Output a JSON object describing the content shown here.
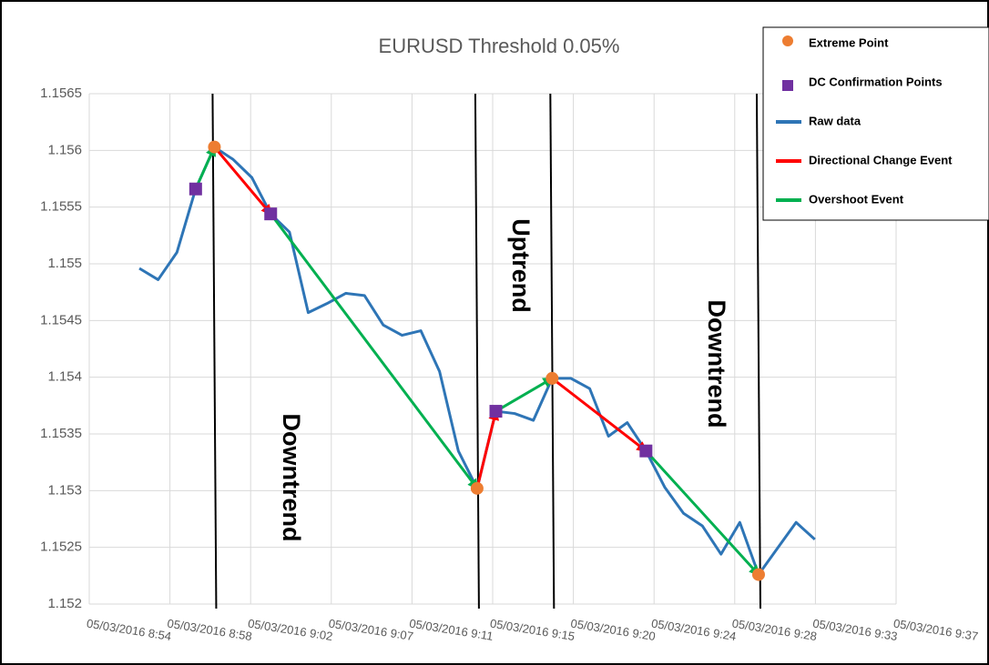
{
  "chart_data": {
    "type": "line",
    "title": "EURUSD Threshold 0.05%",
    "xlim": [
      534.33,
      577.33
    ],
    "xticks": [
      {
        "value": 534.33,
        "label": "05/03/2016 8:54"
      },
      {
        "value": 538.63,
        "label": "05/03/2016 8:58"
      },
      {
        "value": 542.93,
        "label": "05/03/2016 9:02"
      },
      {
        "value": 547.23,
        "label": "05/03/2016 9:07"
      },
      {
        "value": 551.53,
        "label": "05/03/2016 9:11"
      },
      {
        "value": 555.83,
        "label": "05/03/2016 9:15"
      },
      {
        "value": 560.13,
        "label": "05/03/2016 9:20"
      },
      {
        "value": 564.43,
        "label": "05/03/2016 9:24"
      },
      {
        "value": 568.73,
        "label": "05/03/2016 9:28"
      },
      {
        "value": 573.03,
        "label": "05/03/2016 9:33"
      },
      {
        "value": 577.33,
        "label": "05/03/2016 9:37"
      }
    ],
    "ylim": [
      1.152,
      1.1565
    ],
    "yticks": [
      1.152,
      1.1525,
      1.153,
      1.1535,
      1.154,
      1.1545,
      1.155,
      1.1555,
      1.156,
      1.1565
    ],
    "grid": true,
    "legend": "top-right",
    "annotations": [
      "Downtrend",
      "Uptrend",
      "Downtrend"
    ],
    "series": [
      {
        "name": "Extreme Point",
        "color": "#ed7d31",
        "kind": "points",
        "x": [
          541,
          555,
          559,
          570
        ],
        "values": [
          1.15603,
          1.15302,
          1.15399,
          1.15226
        ]
      },
      {
        "name": "DC Confirmation Points",
        "color": "#7030a0",
        "kind": "squares",
        "x": [
          540,
          544,
          556,
          564
        ],
        "values": [
          1.15566,
          1.15544,
          1.1537,
          1.15335
        ]
      },
      {
        "name": "Raw data",
        "color": "#2e75b6",
        "kind": "line",
        "x": [
          537,
          538,
          539,
          540,
          541,
          542,
          543,
          544,
          545,
          546,
          547,
          548,
          549,
          550,
          551,
          552,
          553,
          554,
          555,
          556,
          557,
          558,
          559,
          560,
          561,
          562,
          563,
          564,
          565,
          566,
          567,
          568,
          569,
          570,
          571,
          572,
          573
        ],
        "values": [
          1.15496,
          1.15486,
          1.1551,
          1.15566,
          1.15603,
          1.15592,
          1.15576,
          1.15544,
          1.15528,
          1.15457,
          1.15465,
          1.15474,
          1.15472,
          1.15446,
          1.15437,
          1.15441,
          1.15405,
          1.15335,
          1.15302,
          1.1537,
          1.15368,
          1.15362,
          1.15399,
          1.15399,
          1.1539,
          1.15348,
          1.1536,
          1.15335,
          1.15303,
          1.1528,
          1.15269,
          1.15244,
          1.15272,
          1.15226,
          1.15249,
          1.15272,
          1.15257
        ]
      },
      {
        "name": "Directional Change Event",
        "color": "#ff0000",
        "kind": "arrows",
        "x": [
          541,
          544,
          null,
          555,
          556,
          null,
          559,
          564
        ],
        "values": [
          1.15603,
          1.15544,
          null,
          1.15302,
          1.1537,
          null,
          1.15399,
          1.15335
        ]
      },
      {
        "name": "Overshoot Event",
        "color": "#00b050",
        "kind": "arrows",
        "x": [
          540,
          541,
          null,
          544,
          555,
          null,
          556,
          559,
          null,
          564,
          570
        ],
        "values": [
          1.15566,
          1.15603,
          null,
          1.15544,
          1.15302,
          null,
          1.1537,
          1.15399,
          null,
          1.15335,
          1.15226
        ]
      }
    ]
  }
}
